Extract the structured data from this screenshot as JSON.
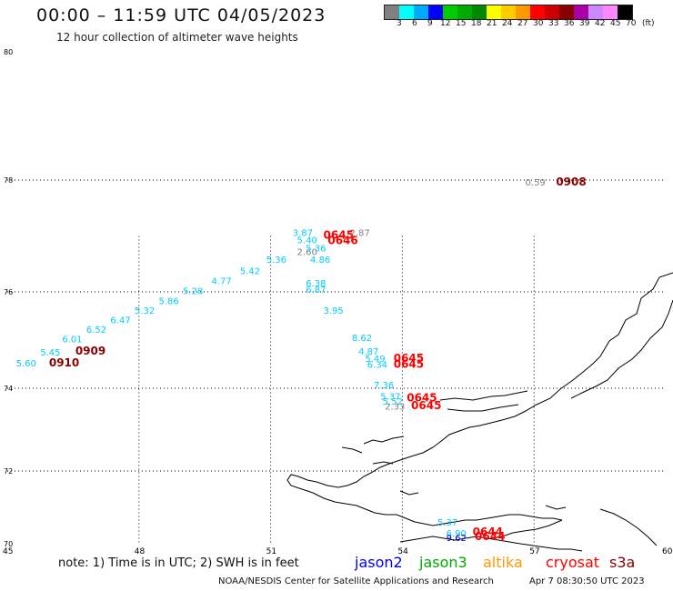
{
  "header": {
    "title": "00:00 – 11:59 UTC 04/05/2023",
    "subtitle": "12 hour collection of altimeter wave heights"
  },
  "legend": {
    "unit": "(ft)",
    "colors": [
      "#808080",
      "#00ffff",
      "#00aaff",
      "#0000ff",
      "#00cc00",
      "#00aa00",
      "#008800",
      "#ffff00",
      "#ffcc00",
      "#ff9900",
      "#ff0000",
      "#cc0000",
      "#880000",
      "#aa00aa",
      "#cc88ff",
      "#ff88ff",
      "#000000"
    ],
    "labels": [
      "3",
      "6",
      "9",
      "12",
      "15",
      "18",
      "21",
      "24",
      "27",
      "30",
      "33",
      "36",
      "39",
      "42",
      "45",
      "70"
    ]
  },
  "axes": {
    "lat_ticks": [
      {
        "label": "80",
        "lat": 80
      },
      {
        "label": "78",
        "lat": 78
      },
      {
        "label": "76",
        "lat": 76
      },
      {
        "label": "74",
        "lat": 74
      },
      {
        "label": "72",
        "lat": 72
      },
      {
        "label": "70",
        "lat": 70
      }
    ],
    "lon_ticks": [
      {
        "label": "45",
        "lon": 45
      },
      {
        "label": "48",
        "lon": 48
      },
      {
        "label": "51",
        "lon": 51
      },
      {
        "label": "54",
        "lon": 54
      },
      {
        "label": "57",
        "lon": 57
      },
      {
        "label": "60",
        "lon": 60
      }
    ]
  },
  "observations": [
    {
      "text": "0.59",
      "lon": 56.8,
      "lat": 77.9,
      "kind": "val",
      "color": "#808080"
    },
    {
      "text": "0908",
      "lon": 57.5,
      "lat": 77.9,
      "kind": "tm",
      "color": "#880000"
    },
    {
      "text": "3.87",
      "lon": 51.5,
      "lat": 77.0,
      "kind": "val",
      "color": "#00ccff"
    },
    {
      "text": "0645",
      "lon": 52.2,
      "lat": 76.95,
      "kind": "tm",
      "color": "#ff0000"
    },
    {
      "text": "2.87",
      "lon": 52.8,
      "lat": 77.0,
      "kind": "val",
      "color": "#808080"
    },
    {
      "text": "5.40",
      "lon": 51.6,
      "lat": 76.87,
      "kind": "val",
      "color": "#00ccff"
    },
    {
      "text": "0646",
      "lon": 52.3,
      "lat": 76.85,
      "kind": "tm",
      "color": "#ff0000"
    },
    {
      "text": "2.60",
      "lon": 51.6,
      "lat": 76.66,
      "kind": "val",
      "color": "#808080"
    },
    {
      "text": "5.36",
      "lon": 51.8,
      "lat": 76.72,
      "kind": "val",
      "color": "#00ccff"
    },
    {
      "text": "5.36",
      "lon": 50.9,
      "lat": 76.52,
      "kind": "val",
      "color": "#00ccff"
    },
    {
      "text": "4.86",
      "lon": 51.9,
      "lat": 76.52,
      "kind": "val",
      "color": "#00ccff"
    },
    {
      "text": "5.42",
      "lon": 50.3,
      "lat": 76.32,
      "kind": "val",
      "color": "#00ccff"
    },
    {
      "text": "4.77",
      "lon": 49.65,
      "lat": 76.14,
      "kind": "val",
      "color": "#00ccff"
    },
    {
      "text": "6.38",
      "lon": 51.8,
      "lat": 76.1,
      "kind": "val",
      "color": "#00ccff"
    },
    {
      "text": "6.87",
      "lon": 51.8,
      "lat": 75.98,
      "kind": "val",
      "color": "#00ccff"
    },
    {
      "text": "5.28",
      "lon": 49.0,
      "lat": 75.95,
      "kind": "val",
      "color": "#00ccff"
    },
    {
      "text": "5.86",
      "lon": 48.45,
      "lat": 75.75,
      "kind": "val",
      "color": "#00ccff"
    },
    {
      "text": "5.32",
      "lon": 47.9,
      "lat": 75.55,
      "kind": "val",
      "color": "#00ccff"
    },
    {
      "text": "3.95",
      "lon": 52.2,
      "lat": 75.55,
      "kind": "val",
      "color": "#00ccff"
    },
    {
      "text": "6.47",
      "lon": 47.35,
      "lat": 75.35,
      "kind": "val",
      "color": "#00ccff"
    },
    {
      "text": "6.52",
      "lon": 46.8,
      "lat": 75.15,
      "kind": "val",
      "color": "#00ccff"
    },
    {
      "text": "8.62",
      "lon": 52.85,
      "lat": 74.98,
      "kind": "val",
      "color": "#00ccff"
    },
    {
      "text": "6.01",
      "lon": 46.25,
      "lat": 74.95,
      "kind": "val",
      "color": "#00ccff"
    },
    {
      "text": "5.45",
      "lon": 45.75,
      "lat": 74.68,
      "kind": "val",
      "color": "#00ccff"
    },
    {
      "text": "0909",
      "lon": 46.55,
      "lat": 74.7,
      "kind": "tm",
      "color": "#880000"
    },
    {
      "text": "4.87",
      "lon": 53.0,
      "lat": 74.7,
      "kind": "val",
      "color": "#00ccff"
    },
    {
      "text": "5.49",
      "lon": 53.15,
      "lat": 74.55,
      "kind": "val",
      "color": "#00ccff"
    },
    {
      "text": "0645",
      "lon": 53.8,
      "lat": 74.55,
      "kind": "tm",
      "color": "#ff0000"
    },
    {
      "text": "5.60",
      "lon": 45.2,
      "lat": 74.45,
      "kind": "val",
      "color": "#00ccff"
    },
    {
      "text": "0910",
      "lon": 45.95,
      "lat": 74.45,
      "kind": "tm",
      "color": "#880000"
    },
    {
      "text": "6.34",
      "lon": 53.2,
      "lat": 74.42,
      "kind": "val",
      "color": "#00ccff"
    },
    {
      "text": "0645",
      "lon": 53.8,
      "lat": 74.42,
      "kind": "tm",
      "color": "#ff0000"
    },
    {
      "text": "7.36",
      "lon": 53.35,
      "lat": 74.0,
      "kind": "val",
      "color": "#00ccff"
    },
    {
      "text": "5.37",
      "lon": 53.5,
      "lat": 73.73,
      "kind": "val",
      "color": "#00ccff"
    },
    {
      "text": "0645",
      "lon": 54.1,
      "lat": 73.68,
      "kind": "tm",
      "color": "#ff0000"
    },
    {
      "text": "5.52",
      "lon": 53.55,
      "lat": 73.6,
      "kind": "val",
      "color": "#00ccff"
    },
    {
      "text": "2.33",
      "lon": 53.6,
      "lat": 73.48,
      "kind": "val",
      "color": "#808080"
    },
    {
      "text": "0645",
      "lon": 54.2,
      "lat": 73.5,
      "kind": "tm",
      "color": "#ff0000"
    },
    {
      "text": "5.37",
      "lon": 54.8,
      "lat": 70.5,
      "kind": "val",
      "color": "#00ccff"
    },
    {
      "text": "0644",
      "lon": 55.6,
      "lat": 70.22,
      "kind": "tm",
      "color": "#ff0000"
    },
    {
      "text": "6.90",
      "lon": 55.0,
      "lat": 70.2,
      "kind": "val",
      "color": "#00ccff"
    },
    {
      "text": "0644",
      "lon": 55.65,
      "lat": 70.1,
      "kind": "tm",
      "color": "#ff0000"
    },
    {
      "text": "9.62",
      "lon": 55.0,
      "lat": 70.08,
      "kind": "val",
      "color": "#0000cc"
    }
  ],
  "footer": {
    "note": "note: 1) Time is in UTC; 2) SWH is in feet",
    "satellites": [
      {
        "name": "jason2",
        "color": "#0000ee"
      },
      {
        "name": "jason3",
        "color": "#00aa00"
      },
      {
        "name": "altika",
        "color": "#ff9900"
      },
      {
        "name": "cryosat",
        "color": "#ff0000"
      },
      {
        "name": "s3a",
        "color": "#880000"
      }
    ],
    "credit": "NOAA/NESDIS Center for Satellite Applications and Research",
    "timestamp": "Apr  7 08:30:50 UTC 2023"
  }
}
